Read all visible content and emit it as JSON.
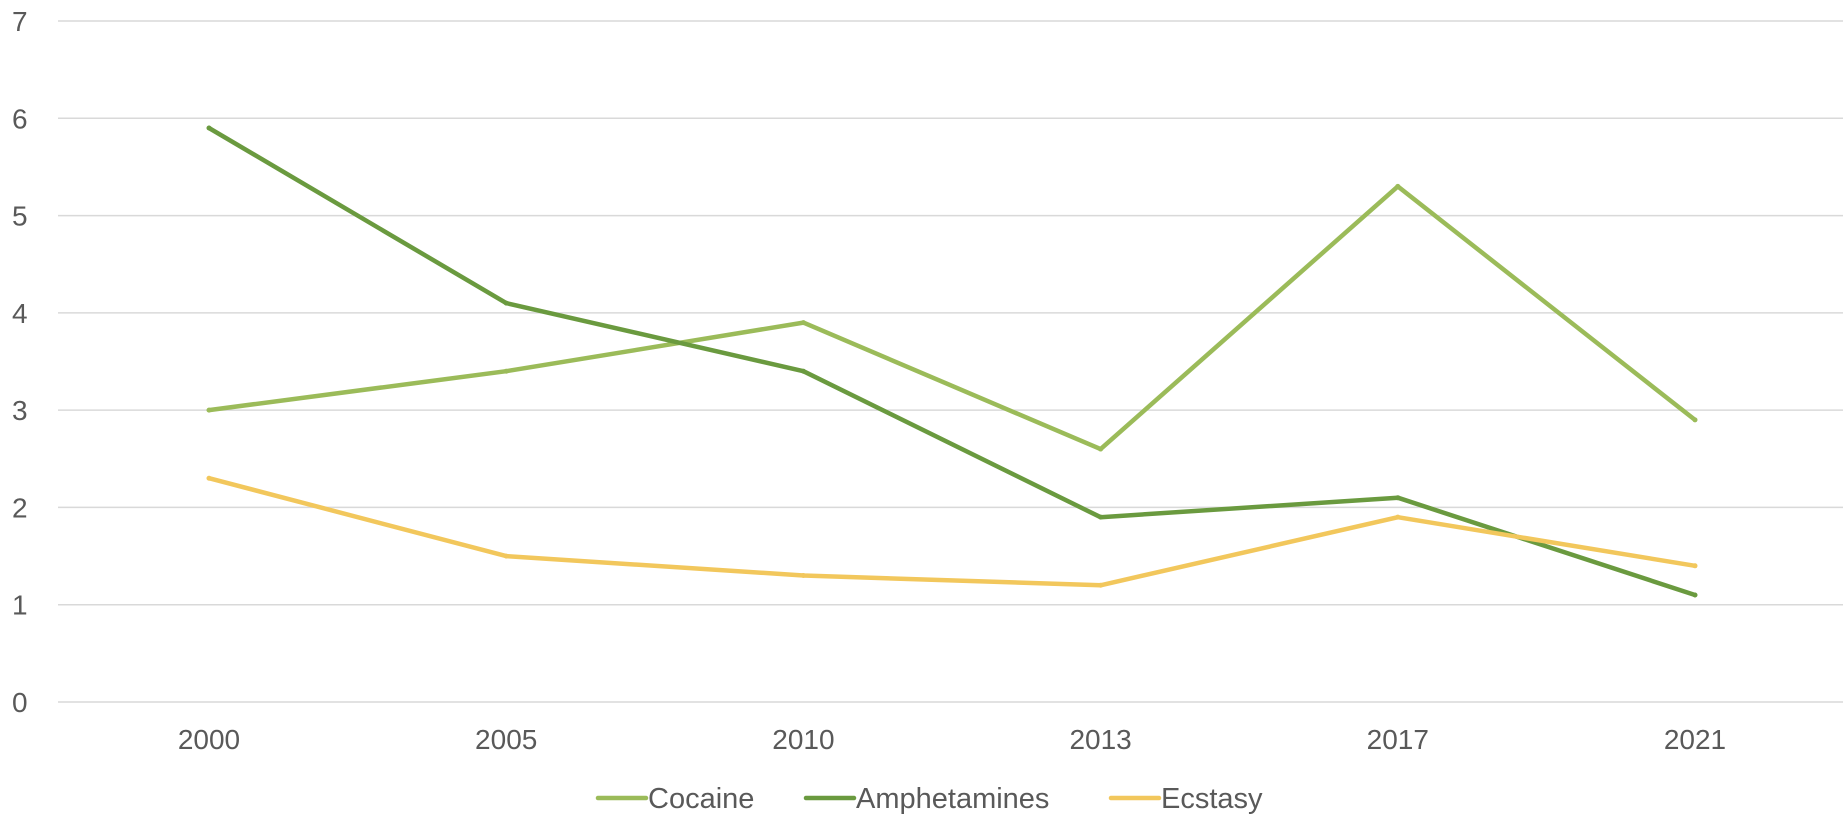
{
  "chart_data": {
    "type": "line",
    "title": "",
    "xlabel": "",
    "ylabel": "",
    "categories": [
      "2000",
      "2005",
      "2010",
      "2013",
      "2017",
      "2021"
    ],
    "ylim": [
      0,
      7
    ],
    "yticks": [
      0,
      1,
      2,
      3,
      4,
      5,
      6,
      7
    ],
    "grid": true,
    "legend_position": "bottom",
    "series": [
      {
        "name": "Cocaine",
        "color": "#9bbb59",
        "values": [
          3.0,
          3.4,
          3.9,
          2.6,
          5.3,
          2.9
        ]
      },
      {
        "name": "Amphetamines",
        "color": "#6a9a3f",
        "values": [
          5.9,
          4.1,
          3.4,
          1.9,
          2.1,
          1.1
        ]
      },
      {
        "name": "Ecstasy",
        "color": "#f2c75c",
        "values": [
          2.3,
          1.5,
          1.3,
          1.2,
          1.9,
          1.4
        ]
      }
    ],
    "colors": {
      "gridline": "#d9d9d9",
      "tick_text": "#595959"
    }
  }
}
